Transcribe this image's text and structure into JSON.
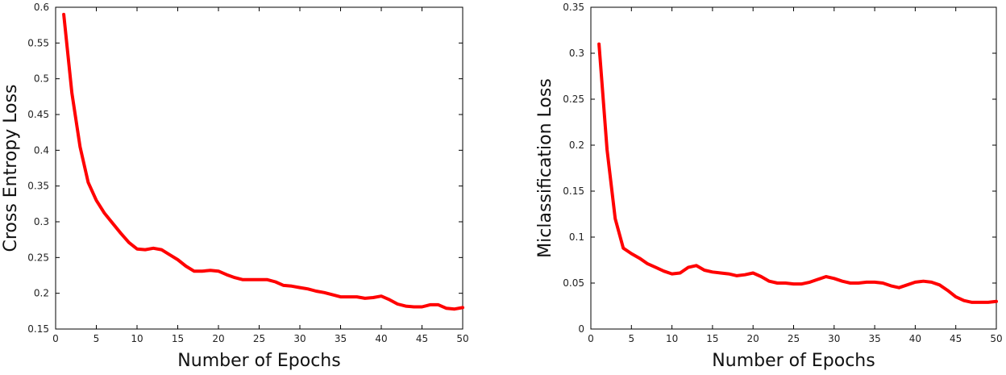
{
  "chart_data": [
    {
      "type": "line",
      "xlabel": "Number of Epochs",
      "ylabel": "Cross Entropy Loss",
      "xlim": [
        0,
        50
      ],
      "ylim": [
        0.15,
        0.6
      ],
      "xticks": [
        0,
        5,
        10,
        15,
        20,
        25,
        30,
        35,
        40,
        45,
        50
      ],
      "yticks": [
        0.15,
        0.2,
        0.25,
        0.3,
        0.35,
        0.4,
        0.45,
        0.5,
        0.55,
        0.6
      ],
      "grid": false,
      "color": "#ff0000",
      "x": [
        1,
        2,
        3,
        4,
        5,
        6,
        7,
        8,
        9,
        10,
        11,
        12,
        13,
        14,
        15,
        16,
        17,
        18,
        19,
        20,
        21,
        22,
        23,
        24,
        25,
        26,
        27,
        28,
        29,
        30,
        31,
        32,
        33,
        34,
        35,
        36,
        37,
        38,
        39,
        40,
        41,
        42,
        43,
        44,
        45,
        46,
        47,
        48,
        49,
        50
      ],
      "y": [
        0.59,
        0.48,
        0.405,
        0.355,
        0.33,
        0.312,
        0.298,
        0.284,
        0.271,
        0.262,
        0.261,
        0.263,
        0.261,
        0.254,
        0.247,
        0.238,
        0.231,
        0.231,
        0.232,
        0.231,
        0.226,
        0.222,
        0.219,
        0.219,
        0.219,
        0.219,
        0.216,
        0.211,
        0.21,
        0.208,
        0.206,
        0.203,
        0.201,
        0.198,
        0.195,
        0.195,
        0.195,
        0.193,
        0.194,
        0.196,
        0.191,
        0.185,
        0.182,
        0.181,
        0.181,
        0.184,
        0.184,
        0.179,
        0.178,
        0.18
      ]
    },
    {
      "type": "line",
      "xlabel": "Number of Epochs",
      "ylabel": "Miclassification Loss",
      "xlim": [
        0,
        50
      ],
      "ylim": [
        0,
        0.35
      ],
      "xticks": [
        0,
        5,
        10,
        15,
        20,
        25,
        30,
        35,
        40,
        45,
        50
      ],
      "yticks": [
        0,
        0.05,
        0.1,
        0.15,
        0.2,
        0.25,
        0.3,
        0.35
      ],
      "grid": false,
      "color": "#ff0000",
      "x": [
        1,
        2,
        3,
        4,
        5,
        6,
        7,
        8,
        9,
        10,
        11,
        12,
        13,
        14,
        15,
        16,
        17,
        18,
        19,
        20,
        21,
        22,
        23,
        24,
        25,
        26,
        27,
        28,
        29,
        30,
        31,
        32,
        33,
        34,
        35,
        36,
        37,
        38,
        39,
        40,
        41,
        42,
        43,
        44,
        45,
        46,
        47,
        48,
        49,
        50
      ],
      "y": [
        0.31,
        0.195,
        0.12,
        0.088,
        0.082,
        0.077,
        0.071,
        0.067,
        0.063,
        0.06,
        0.061,
        0.067,
        0.069,
        0.064,
        0.062,
        0.061,
        0.06,
        0.058,
        0.059,
        0.061,
        0.057,
        0.052,
        0.05,
        0.05,
        0.049,
        0.049,
        0.051,
        0.054,
        0.057,
        0.055,
        0.052,
        0.05,
        0.05,
        0.051,
        0.051,
        0.05,
        0.047,
        0.045,
        0.048,
        0.051,
        0.052,
        0.051,
        0.048,
        0.042,
        0.035,
        0.031,
        0.029,
        0.029,
        0.029,
        0.03
      ]
    }
  ]
}
